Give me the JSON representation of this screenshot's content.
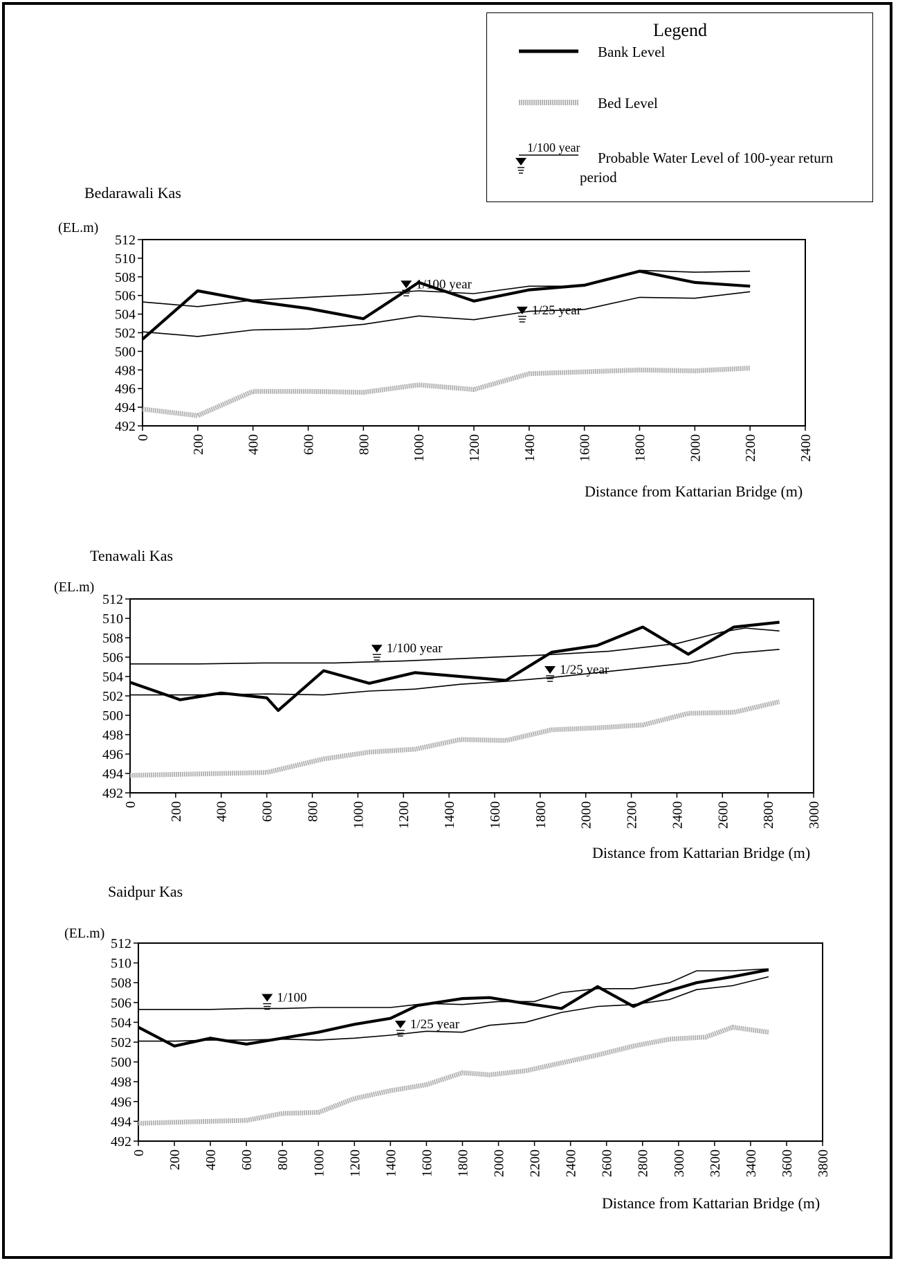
{
  "legend": {
    "title": "Legend",
    "bank": "Bank Level",
    "bed": "Bed Level",
    "marker_tag": "1/100 year",
    "water": "Probable Water Level of 100-year return",
    "water_line2": "period"
  },
  "colors": {
    "bank": "#000000",
    "bed": "#b4b4b4",
    "water": "#000000"
  },
  "chart_data": [
    {
      "type": "line",
      "title": "Bedarawali Kas",
      "ylabel": "(EL.m)",
      "xlabel": "Distance from Kattarian Bridge (m)",
      "xlim": [
        0,
        2400
      ],
      "ylim": [
        492,
        512
      ],
      "xticks": [
        0,
        200,
        400,
        600,
        800,
        1000,
        1200,
        1400,
        1600,
        1800,
        2000,
        2200,
        2400
      ],
      "yticks": [
        492,
        494,
        496,
        498,
        500,
        502,
        504,
        506,
        508,
        510,
        512
      ],
      "series": [
        {
          "name": "Bank Level",
          "style": "bank",
          "x": [
            0,
            200,
            400,
            600,
            800,
            1000,
            1200,
            1400,
            1600,
            1800,
            2000,
            2200
          ],
          "y": [
            501.3,
            506.5,
            505.4,
            504.6,
            503.5,
            507.4,
            505.4,
            506.6,
            507.1,
            508.6,
            507.4,
            507.0
          ]
        },
        {
          "name": "Bed Level",
          "style": "bed",
          "x": [
            0,
            200,
            400,
            600,
            800,
            1000,
            1200,
            1400,
            1600,
            1800,
            2000,
            2200
          ],
          "y": [
            493.8,
            493.1,
            495.7,
            495.7,
            495.6,
            496.4,
            495.9,
            497.6,
            497.8,
            498.0,
            497.9,
            498.2
          ]
        },
        {
          "name": "1/100 year",
          "style": "water",
          "label": "1/100 year",
          "label_x": 1010,
          "label_y": 507.0,
          "x": [
            0,
            200,
            400,
            600,
            800,
            1000,
            1200,
            1400,
            1600,
            1800,
            2000,
            2200
          ],
          "y": [
            505.3,
            504.8,
            505.5,
            505.8,
            506.1,
            506.5,
            506.2,
            507.0,
            507.0,
            508.7,
            508.5,
            508.6
          ]
        },
        {
          "name": "1/25 year",
          "style": "water",
          "label": "1/25 year",
          "label_x": 1430,
          "label_y": 504.2,
          "x": [
            0,
            200,
            400,
            600,
            800,
            1000,
            1200,
            1400,
            1600,
            1800,
            2000,
            2200
          ],
          "y": [
            502.1,
            501.6,
            502.3,
            502.4,
            502.9,
            503.8,
            503.4,
            504.3,
            504.5,
            505.8,
            505.7,
            506.4
          ]
        }
      ]
    },
    {
      "type": "line",
      "title": "Tenawali Kas",
      "ylabel": "(EL.m)",
      "xlabel": "Distance from Kattarian Bridge (m)",
      "xlim": [
        0,
        3000
      ],
      "ylim": [
        492,
        512
      ],
      "xticks": [
        0,
        200,
        400,
        600,
        800,
        1000,
        1200,
        1400,
        1600,
        1800,
        2000,
        2200,
        2400,
        2600,
        2800,
        3000
      ],
      "yticks": [
        492,
        494,
        496,
        498,
        500,
        502,
        504,
        506,
        508,
        510,
        512
      ],
      "series": [
        {
          "name": "Bank Level",
          "style": "bank",
          "x": [
            0,
            220,
            400,
            600,
            650,
            850,
            1050,
            1250,
            1450,
            1650,
            1850,
            2050,
            2250,
            2450,
            2650,
            2850
          ],
          "y": [
            503.4,
            501.6,
            502.3,
            501.8,
            500.5,
            504.6,
            503.3,
            504.4,
            504.0,
            503.6,
            506.5,
            507.2,
            509.1,
            506.3,
            509.1,
            509.6
          ]
        },
        {
          "name": "Bed Level",
          "style": "bed",
          "x": [
            0,
            200,
            400,
            600,
            850,
            1050,
            1250,
            1450,
            1650,
            1850,
            2050,
            2250,
            2450,
            2650,
            2850
          ],
          "y": [
            493.8,
            493.9,
            494.0,
            494.1,
            495.5,
            496.2,
            496.5,
            497.5,
            497.4,
            498.5,
            498.7,
            499.0,
            500.2,
            500.3,
            501.4
          ]
        },
        {
          "name": "1/100 year",
          "style": "water",
          "label": "1/100 year",
          "label_x": 1150,
          "label_y": 506.7,
          "x": [
            0,
            300,
            600,
            900,
            1200,
            1500,
            1800,
            2100,
            2400,
            2600,
            2700,
            2850
          ],
          "y": [
            505.3,
            505.3,
            505.4,
            505.4,
            505.6,
            505.9,
            506.2,
            506.6,
            507.4,
            508.6,
            509.0,
            508.7
          ]
        },
        {
          "name": "1/25 year",
          "style": "water",
          "label": "1/25 year",
          "label_x": 1910,
          "label_y": 504.5,
          "x": [
            0,
            300,
            600,
            850,
            1050,
            1250,
            1450,
            1650,
            1850,
            2050,
            2250,
            2450,
            2650,
            2850
          ],
          "y": [
            502.1,
            502.1,
            502.2,
            502.1,
            502.5,
            502.7,
            503.2,
            503.5,
            503.9,
            504.4,
            504.9,
            505.4,
            506.4,
            506.8
          ]
        }
      ]
    },
    {
      "type": "line",
      "title": "Saidpur Kas",
      "ylabel": "(EL.m)",
      "xlabel": "Distance from Kattarian Bridge (m)",
      "xlim": [
        0,
        3800
      ],
      "ylim": [
        492,
        512
      ],
      "xticks": [
        0,
        200,
        400,
        600,
        800,
        1000,
        1200,
        1400,
        1600,
        1800,
        2000,
        2200,
        2400,
        2600,
        2800,
        3000,
        3200,
        3400,
        3600,
        3800
      ],
      "yticks": [
        492,
        494,
        496,
        498,
        500,
        502,
        504,
        506,
        508,
        510,
        512
      ],
      "series": [
        {
          "name": "Bank Level",
          "style": "bank",
          "x": [
            0,
            200,
            400,
            600,
            800,
            1000,
            1200,
            1400,
            1550,
            1800,
            1950,
            2150,
            2350,
            2550,
            2750,
            2950,
            3100,
            3300,
            3500
          ],
          "y": [
            503.5,
            501.6,
            502.4,
            501.8,
            502.4,
            503.0,
            503.8,
            504.4,
            505.7,
            506.4,
            506.5,
            505.9,
            505.4,
            507.6,
            505.6,
            507.2,
            508.0,
            508.6,
            509.3
          ]
        },
        {
          "name": "Bed Level",
          "style": "bed",
          "x": [
            0,
            200,
            400,
            600,
            800,
            1000,
            1200,
            1400,
            1600,
            1800,
            1950,
            2150,
            2350,
            2550,
            2750,
            2950,
            3150,
            3300,
            3500
          ],
          "y": [
            493.8,
            493.9,
            494.0,
            494.1,
            494.8,
            494.9,
            496.3,
            497.1,
            497.7,
            498.9,
            498.7,
            499.1,
            499.9,
            500.7,
            501.6,
            502.3,
            502.5,
            503.5,
            503.0
          ]
        },
        {
          "name": "1/100",
          "style": "water",
          "label": "1/100",
          "label_x": 800,
          "label_y": 506.3,
          "x": [
            0,
            200,
            400,
            600,
            800,
            1000,
            1200,
            1400,
            1600,
            1800,
            2000,
            2200,
            2350,
            2550,
            2750,
            2950,
            3100,
            3300,
            3500
          ],
          "y": [
            505.3,
            505.3,
            505.3,
            505.4,
            505.4,
            505.5,
            505.5,
            505.5,
            505.9,
            505.8,
            506.1,
            506.1,
            507.0,
            507.4,
            507.4,
            508.0,
            509.2,
            509.2,
            509.4
          ]
        },
        {
          "name": "1/25 year",
          "style": "water",
          "label": "1/25 year",
          "label_x": 1540,
          "label_y": 503.6,
          "x": [
            0,
            200,
            400,
            600,
            800,
            1000,
            1200,
            1400,
            1600,
            1800,
            1950,
            2150,
            2350,
            2550,
            2750,
            2950,
            3100,
            3300,
            3500
          ],
          "y": [
            502.1,
            502.1,
            502.2,
            502.2,
            502.3,
            502.2,
            502.4,
            502.7,
            503.1,
            503.0,
            503.7,
            504.0,
            505.0,
            505.6,
            505.8,
            506.3,
            507.3,
            507.7,
            508.6
          ]
        }
      ]
    }
  ]
}
